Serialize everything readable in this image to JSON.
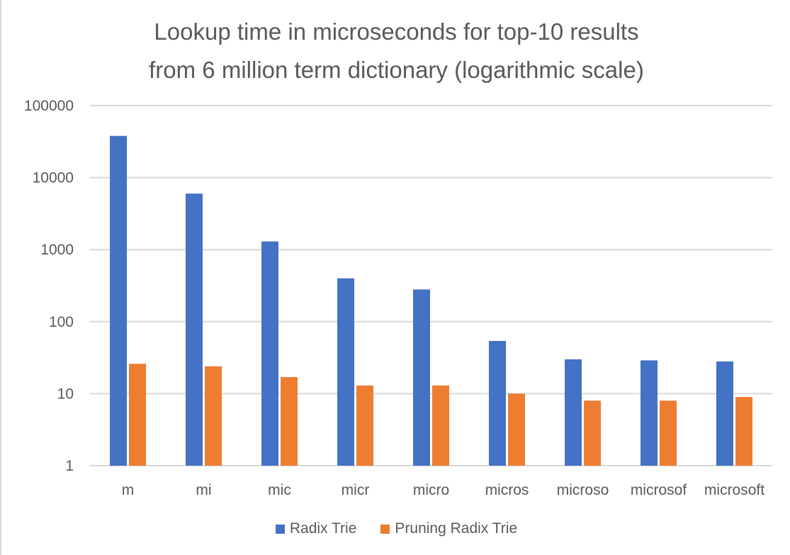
{
  "chart_data": {
    "type": "bar",
    "title": [
      "Lookup time in microseconds for top-10 results",
      "from 6 million term dictionary (logarithmic scale)"
    ],
    "xlabel": "",
    "ylabel": "",
    "y_scale": "log",
    "ylim": [
      1,
      100000
    ],
    "y_ticks": [
      "1",
      "10",
      "100",
      "1000",
      "10000",
      "100000"
    ],
    "grid": true,
    "legend_position": "bottom",
    "categories": [
      "m",
      "mi",
      "mic",
      "micr",
      "micro",
      "micros",
      "microso",
      "microsof",
      "microsoft"
    ],
    "series": [
      {
        "name": "Radix Trie",
        "color": "#4472c4",
        "values": [
          38000,
          6000,
          1300,
          400,
          280,
          54,
          30,
          29,
          28
        ]
      },
      {
        "name": "Pruning Radix Trie",
        "color": "#ed7d31",
        "values": [
          26,
          24,
          17,
          13,
          13,
          10,
          8,
          8,
          9
        ]
      }
    ]
  }
}
